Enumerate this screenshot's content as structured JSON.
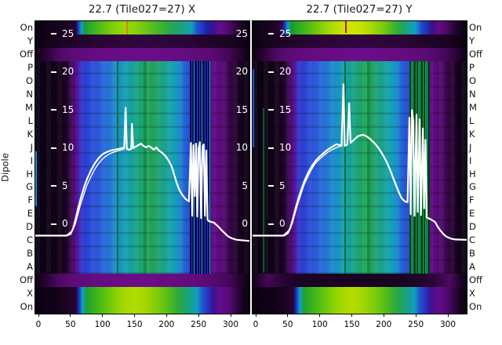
{
  "titles": {
    "left": "22.7 (Tile027=27) X",
    "right": "22.7 (Tile027=27) Y"
  },
  "axes": {
    "ylabel": "Dipole",
    "row_labels": [
      "On",
      "Y",
      "Off",
      "P",
      "O",
      "N",
      "M",
      "L",
      "K",
      "J",
      "I",
      "H",
      "G",
      "F",
      "E",
      "D",
      "C",
      "B",
      "A",
      "Off",
      "X",
      "On"
    ],
    "x_tick_labels": [
      "0",
      "50",
      "100",
      "150",
      "200",
      "250",
      "300"
    ],
    "inner_y_tick_labels": [
      "25",
      "20",
      "15",
      "10",
      "5",
      "0"
    ]
  },
  "colors": {
    "background": "#ffffff",
    "text": "#111111",
    "curve": "#ffffff",
    "colormap": "nipy-spectral-like",
    "palette_low": "#0a0113",
    "palette_purple": "#6b0d8a",
    "palette_blue": "#2a3ed2",
    "palette_cyan": "#13a0c0",
    "palette_green": "#21a356",
    "palette_yellow_green": "#c8e400",
    "rfi_marker_left": "#d08b00",
    "rfi_marker_right": "#cc1111",
    "green_rfi_line": "#0b6e22"
  },
  "chart_data": [
    {
      "type": "heatmap",
      "title": "22.7 (Tile027=27) X",
      "x_axis": {
        "ticks": [
          0,
          50,
          100,
          150,
          200,
          250,
          300
        ],
        "range": [
          0,
          329
        ]
      },
      "overlay_axis": {
        "ticks": [
          25,
          20,
          15,
          10,
          5,
          0
        ],
        "label_sides": [
          "left",
          "right"
        ]
      },
      "row_categories": [
        "On",
        "Y",
        "Off",
        "P",
        "O",
        "N",
        "M",
        "L",
        "K",
        "J",
        "I",
        "H",
        "G",
        "F",
        "E",
        "D",
        "C",
        "B",
        "A",
        "Off",
        "X",
        "On"
      ],
      "row_intensity": {
        "On_top": "high green-yellow band",
        "Y": "very low dark",
        "Off_top": "low purple",
        "dipoles_P_to_A": "mid blue-cyan-green bandpass",
        "Off_bottom": "low purple",
        "X": "high green-yellow band",
        "On_bottom": "high green-yellow band"
      },
      "features": {
        "rfi_line_channel": 137,
        "rfi_cluster_channels": [
          236,
          266
        ],
        "marker_color": "#d08b00"
      },
      "line_series": [
        {
          "name": "bandpass-main-x",
          "points": [
            [
              -5,
              -1.6
            ],
            [
              44,
              -1.6
            ],
            [
              50,
              -1.4
            ],
            [
              54,
              -0.7
            ],
            [
              58,
              0.6
            ],
            [
              62,
              2.0
            ],
            [
              66,
              3.3
            ],
            [
              71,
              4.7
            ],
            [
              76,
              5.9
            ],
            [
              82,
              7.0
            ],
            [
              88,
              7.9
            ],
            [
              94,
              8.6
            ],
            [
              100,
              9.1
            ],
            [
              107,
              9.4
            ],
            [
              113,
              9.6
            ],
            [
              119,
              9.7
            ],
            [
              125,
              9.8
            ],
            [
              130,
              9.9
            ],
            [
              134,
              10.0
            ],
            [
              136,
              15.2
            ],
            [
              138,
              9.8
            ],
            [
              142,
              9.7
            ],
            [
              145,
              9.8
            ],
            [
              146,
              13.1
            ],
            [
              148,
              9.9
            ],
            [
              152,
              10.1
            ],
            [
              156,
              10.3
            ],
            [
              160,
              10.5
            ],
            [
              164,
              10.2
            ],
            [
              168,
              10.0
            ],
            [
              172,
              10.2
            ],
            [
              176,
              10.0
            ],
            [
              180,
              9.7
            ],
            [
              184,
              10.0
            ],
            [
              188,
              9.6
            ],
            [
              193,
              9.3
            ],
            [
              198,
              8.9
            ],
            [
              203,
              8.3
            ],
            [
              208,
              7.5
            ],
            [
              212,
              6.4
            ],
            [
              216,
              5.3
            ],
            [
              220,
              4.4
            ],
            [
              225,
              3.7
            ],
            [
              230,
              3.2
            ],
            [
              235,
              2.9
            ],
            [
              238,
              10.6
            ],
            [
              240,
              1.0
            ],
            [
              242,
              10.3
            ],
            [
              244,
              3.6
            ],
            [
              246,
              10.5
            ],
            [
              248,
              0.9
            ],
            [
              250,
              9.9
            ],
            [
              252,
              10.7
            ],
            [
              254,
              0.7
            ],
            [
              256,
              10.0
            ],
            [
              258,
              10.4
            ],
            [
              260,
              1.0
            ],
            [
              262,
              9.6
            ],
            [
              264,
              0.5
            ],
            [
              266,
              0.3
            ],
            [
              270,
              0.2
            ],
            [
              274,
              0.1
            ],
            [
              278,
              -0.2
            ],
            [
              282,
              -0.5
            ],
            [
              286,
              -0.9
            ],
            [
              291,
              -1.3
            ],
            [
              296,
              -1.7
            ],
            [
              302,
              -1.95
            ],
            [
              310,
              -2.15
            ],
            [
              329,
              -2.3
            ]
          ]
        },
        {
          "name": "bandpass-secondary-x",
          "points": [
            [
              44,
              -1.55
            ],
            [
              52,
              -1.0
            ],
            [
              57,
              -0.2
            ],
            [
              61,
              1.0
            ],
            [
              65,
              2.3
            ],
            [
              70,
              3.6
            ],
            [
              75,
              4.9
            ],
            [
              81,
              6.0
            ],
            [
              87,
              7.0
            ],
            [
              93,
              7.8
            ],
            [
              99,
              8.4
            ],
            [
              106,
              8.9
            ],
            [
              112,
              9.2
            ],
            [
              118,
              9.4
            ],
            [
              126,
              9.6
            ],
            [
              134,
              9.8
            ]
          ]
        }
      ]
    },
    {
      "type": "heatmap",
      "title": "22.7 (Tile027=27) Y",
      "x_axis": {
        "ticks": [
          0,
          50,
          100,
          150,
          200,
          250,
          300
        ],
        "range": [
          0,
          329
        ]
      },
      "overlay_axis": {
        "ticks": [
          25,
          20,
          15,
          10,
          5,
          0
        ],
        "label_sides": [
          "left"
        ]
      },
      "row_categories": [
        "On",
        "Y",
        "Off",
        "P",
        "O",
        "N",
        "M",
        "L",
        "K",
        "J",
        "I",
        "H",
        "G",
        "F",
        "E",
        "D",
        "C",
        "B",
        "A",
        "Off",
        "X",
        "On"
      ],
      "row_intensity": {
        "On_top": "high yellow-green band with red marker",
        "Y": "very low dark",
        "Off_top": "low purple",
        "dipoles_P_to_A": "mid blue-cyan-green bandpass",
        "Off_bottom": "very low dark purple",
        "X": "high green-yellow band",
        "On_bottom": "high green-yellow band"
      },
      "features": {
        "rfi_line_channel": 137,
        "rfi_cluster_channels": [
          240,
          268
        ],
        "marker_color": "#cc1111"
      },
      "line_series": [
        {
          "name": "bandpass-main-y",
          "points": [
            [
              -5,
              -1.6
            ],
            [
              44,
              -1.6
            ],
            [
              50,
              -1.3
            ],
            [
              54,
              -0.6
            ],
            [
              58,
              0.6
            ],
            [
              62,
              1.9
            ],
            [
              66,
              3.1
            ],
            [
              71,
              4.4
            ],
            [
              76,
              5.6
            ],
            [
              82,
              6.7
            ],
            [
              88,
              7.6
            ],
            [
              94,
              8.3
            ],
            [
              101,
              8.9
            ],
            [
              108,
              9.4
            ],
            [
              114,
              9.8
            ],
            [
              120,
              10.1
            ],
            [
              126,
              10.4
            ],
            [
              131,
              10.3
            ],
            [
              134,
              10.2
            ],
            [
              137,
              18.3
            ],
            [
              139,
              10.2
            ],
            [
              143,
              10.4
            ],
            [
              146,
              15.8
            ],
            [
              148,
              10.6
            ],
            [
              152,
              10.9
            ],
            [
              156,
              11.2
            ],
            [
              160,
              11.5
            ],
            [
              164,
              11.6
            ],
            [
              168,
              11.65
            ],
            [
              172,
              11.5
            ],
            [
              176,
              11.3
            ],
            [
              180,
              11.0
            ],
            [
              185,
              10.6
            ],
            [
              190,
              10.1
            ],
            [
              195,
              9.5
            ],
            [
              200,
              8.8
            ],
            [
              205,
              8.0
            ],
            [
              210,
              7.0
            ],
            [
              215,
              5.9
            ],
            [
              220,
              4.8
            ],
            [
              224,
              4.0
            ],
            [
              228,
              3.3
            ],
            [
              233,
              2.9
            ],
            [
              237,
              2.8
            ],
            [
              240,
              13.9
            ],
            [
              242,
              1.2
            ],
            [
              244,
              14.9
            ],
            [
              246,
              13.5
            ],
            [
              248,
              1.0
            ],
            [
              251,
              14.3
            ],
            [
              253,
              1.5
            ],
            [
              256,
              13.7
            ],
            [
              258,
              1.1
            ],
            [
              261,
              12.5
            ],
            [
              263,
              2.0
            ],
            [
              265,
              11.0
            ],
            [
              267,
              0.8
            ],
            [
              269,
              0.7
            ],
            [
              272,
              0.6
            ],
            [
              276,
              0.4
            ],
            [
              280,
              0.2
            ],
            [
              284,
              -0.4
            ],
            [
              288,
              -0.9
            ],
            [
              293,
              -1.4
            ],
            [
              298,
              -1.75
            ],
            [
              305,
              -2.0
            ],
            [
              312,
              -2.1
            ],
            [
              329,
              -2.15
            ]
          ]
        },
        {
          "name": "bandpass-secondary-y",
          "points": [
            [
              44,
              -1.5
            ],
            [
              52,
              -0.9
            ],
            [
              57,
              0.0
            ],
            [
              61,
              1.2
            ],
            [
              65,
              2.4
            ],
            [
              70,
              3.7
            ],
            [
              75,
              5.0
            ],
            [
              81,
              6.1
            ],
            [
              87,
              7.1
            ],
            [
              93,
              7.9
            ],
            [
              100,
              8.5
            ],
            [
              107,
              9.0
            ],
            [
              113,
              9.4
            ],
            [
              119,
              9.7
            ],
            [
              127,
              10.0
            ],
            [
              134,
              10.2
            ]
          ]
        }
      ]
    }
  ]
}
